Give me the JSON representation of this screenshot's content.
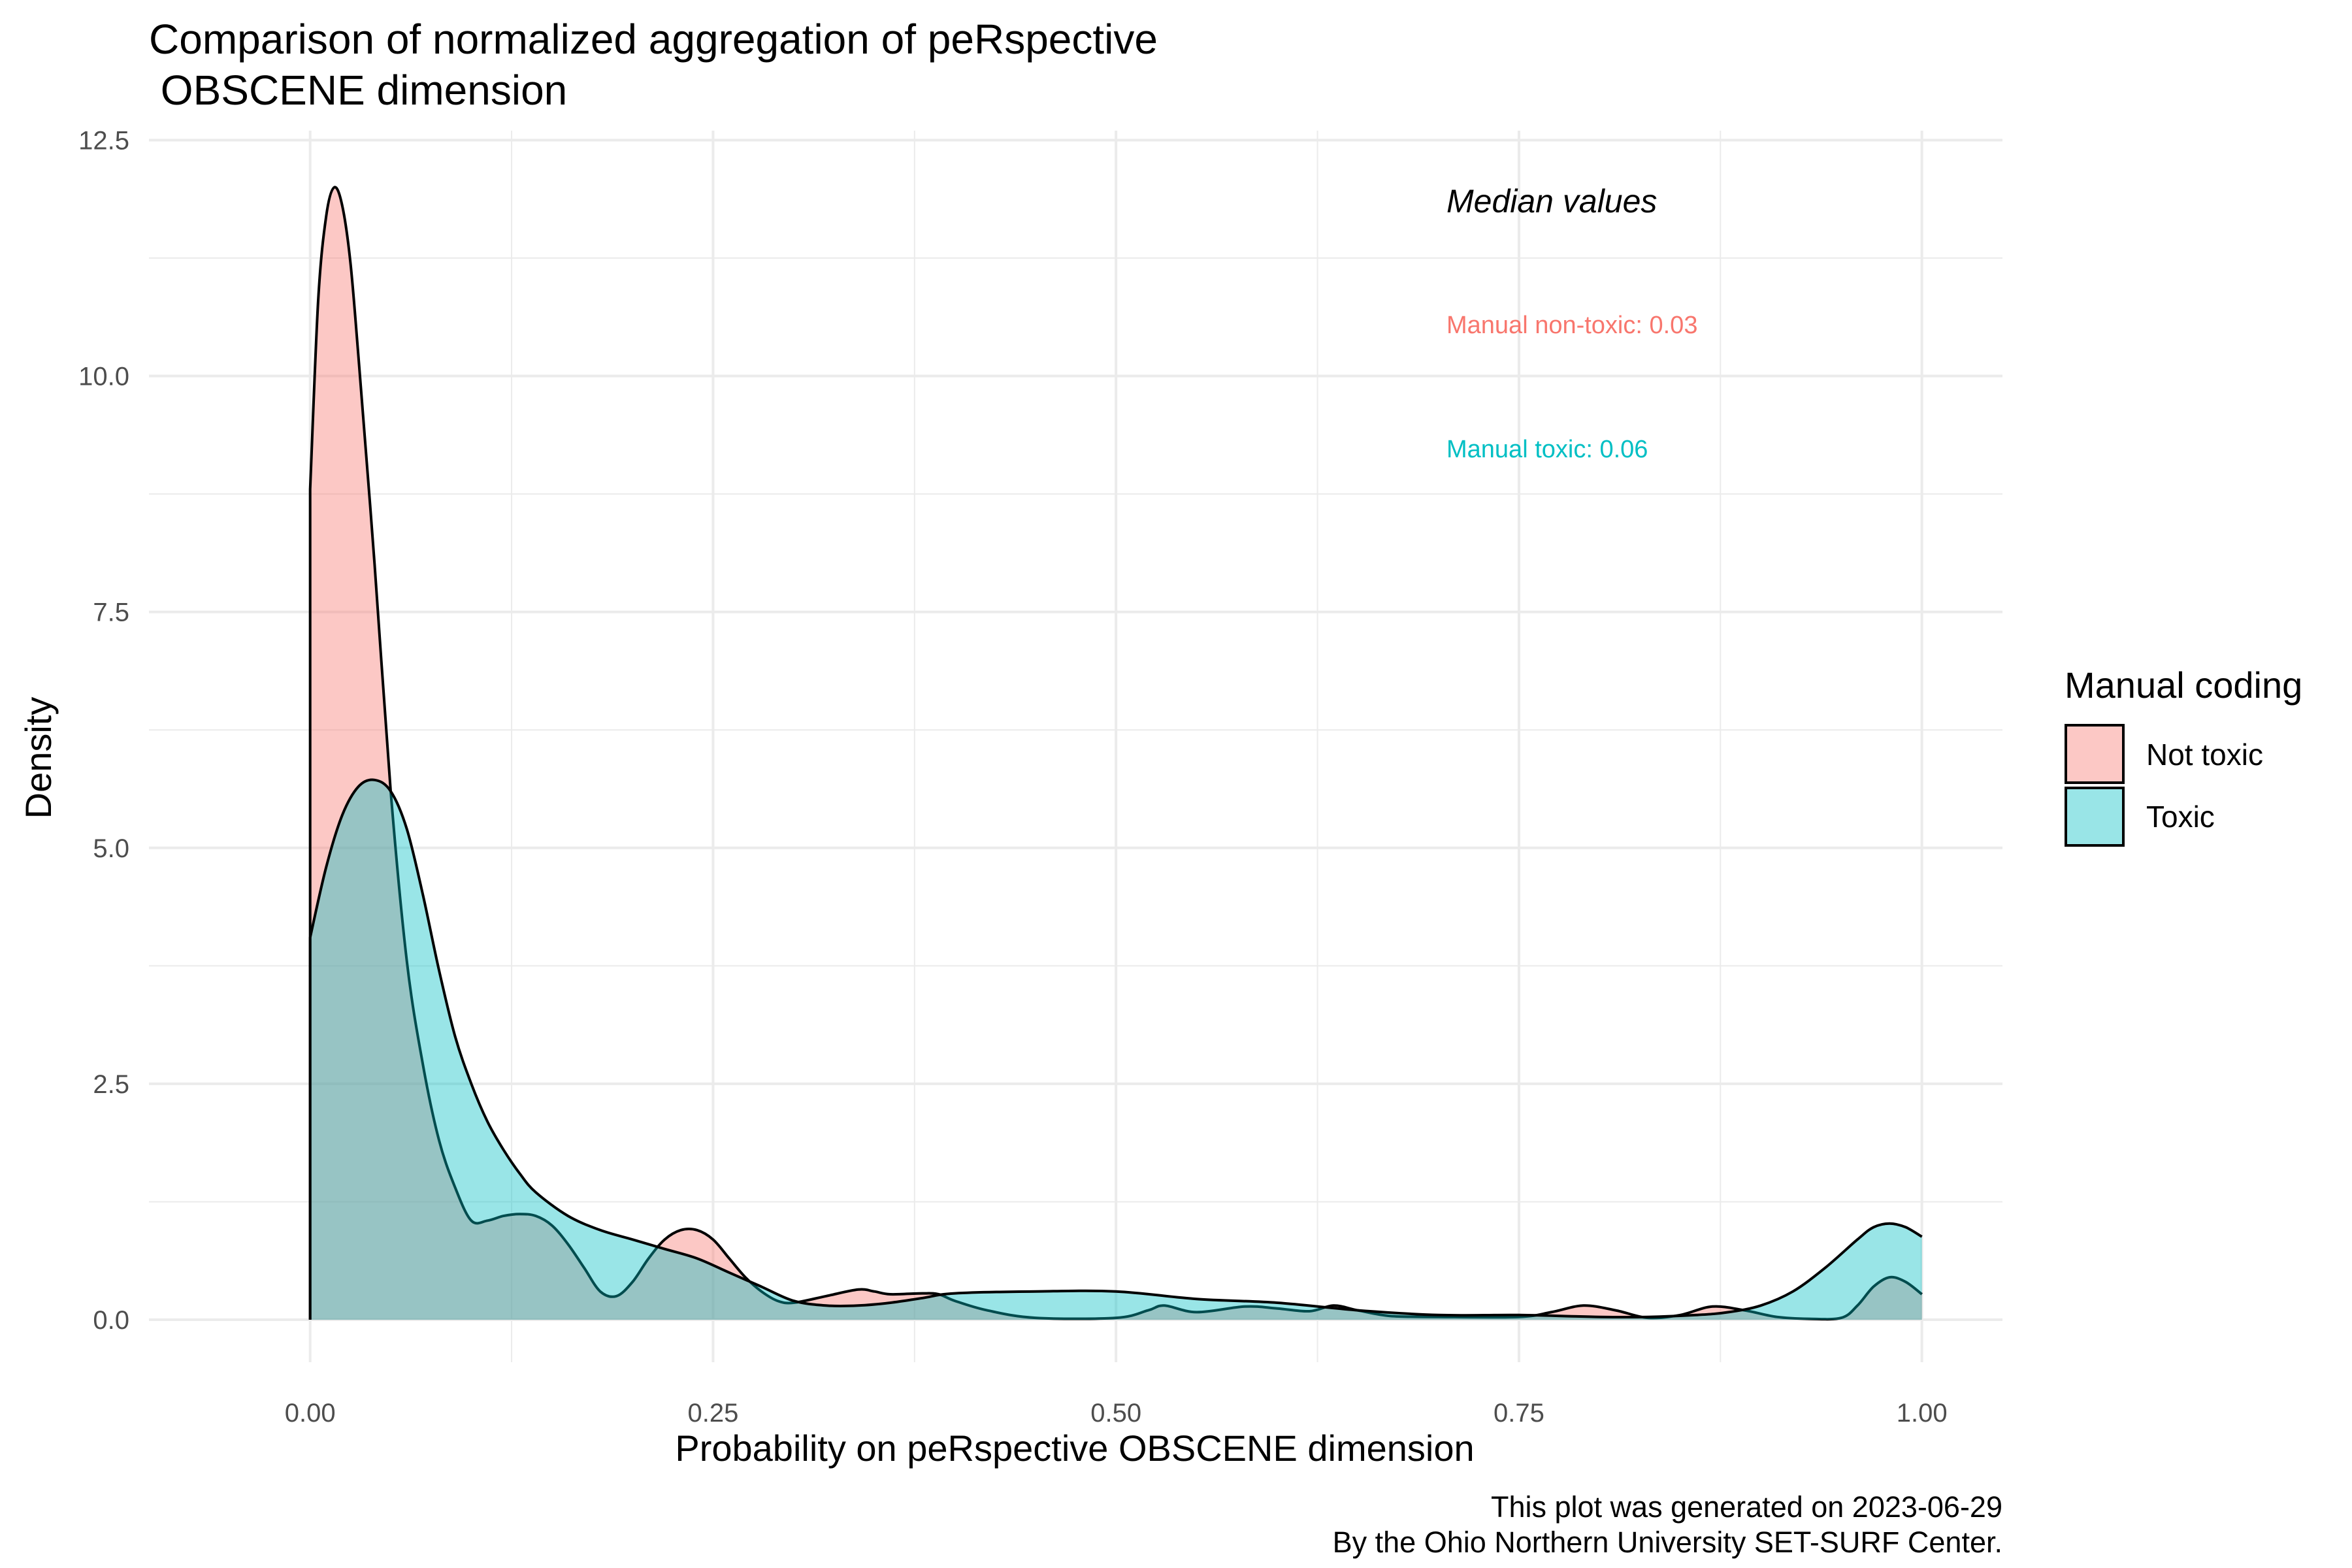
{
  "chart_data": {
    "type": "area",
    "title_line1": "Comparison of normalized aggregation of peRspective",
    "title_line2": " OBSCENE dimension",
    "xlabel": "Probability on peRspective OBSCENE dimension",
    "ylabel": "Density",
    "xlim": [
      -0.1,
      1.05
    ],
    "ylim": [
      -0.45,
      12.6
    ],
    "x_ticks": [
      0,
      0.25,
      0.5,
      0.75,
      1.0
    ],
    "x_tick_labels": [
      "0.00",
      "0.25",
      "0.50",
      "0.75",
      "1.00"
    ],
    "y_ticks": [
      0,
      2.5,
      5,
      7.5,
      10,
      12.5
    ],
    "y_tick_labels": [
      "0.0",
      "2.5",
      "5.0",
      "7.5",
      "10.0",
      "12.5"
    ],
    "grid": true,
    "legend": {
      "title": "Manual coding",
      "position": "right",
      "items": [
        {
          "label": "Not toxic",
          "color": "#F8766D"
        },
        {
          "label": "Toxic",
          "color": "#00BFC4"
        }
      ]
    },
    "annotations": {
      "heading": "Median values",
      "line1": "Manual non-toxic: 0.03",
      "line2": "Manual toxic: 0.06",
      "line1_color": "#F8766D",
      "line2_color": "#00BFC4"
    },
    "caption_line1": "This plot was generated on 2023-06-29",
    "caption_line2": "By the Ohio Northern University SET-SURF Center.",
    "series": [
      {
        "name": "Not toxic",
        "color": "#F8766D",
        "x": [
          0,
          0.005,
          0.01,
          0.015,
          0.02,
          0.025,
          0.03,
          0.04,
          0.05,
          0.06,
          0.07,
          0.08,
          0.09,
          0.1,
          0.11,
          0.12,
          0.13,
          0.14,
          0.15,
          0.16,
          0.17,
          0.18,
          0.19,
          0.2,
          0.21,
          0.22,
          0.23,
          0.24,
          0.25,
          0.26,
          0.27,
          0.28,
          0.29,
          0.3,
          0.32,
          0.34,
          0.35,
          0.36,
          0.38,
          0.39,
          0.4,
          0.42,
          0.45,
          0.5,
          0.52,
          0.53,
          0.55,
          0.58,
          0.6,
          0.62,
          0.635,
          0.65,
          0.67,
          0.7,
          0.75,
          0.77,
          0.79,
          0.81,
          0.83,
          0.85,
          0.87,
          0.89,
          0.91,
          0.93,
          0.95,
          0.96,
          0.97,
          0.98,
          0.99,
          1.0
        ],
        "y": [
          8.8,
          10.8,
          11.7,
          12.0,
          11.8,
          11.2,
          10.2,
          8.0,
          5.6,
          3.8,
          2.7,
          1.9,
          1.4,
          1.05,
          1.05,
          1.1,
          1.12,
          1.1,
          1.0,
          0.8,
          0.55,
          0.3,
          0.25,
          0.4,
          0.65,
          0.85,
          0.95,
          0.95,
          0.85,
          0.65,
          0.45,
          0.3,
          0.2,
          0.18,
          0.25,
          0.32,
          0.3,
          0.27,
          0.28,
          0.27,
          0.2,
          0.1,
          0.02,
          0.02,
          0.1,
          0.15,
          0.08,
          0.14,
          0.12,
          0.09,
          0.15,
          0.1,
          0.04,
          0.03,
          0.03,
          0.08,
          0.15,
          0.1,
          0.02,
          0.05,
          0.14,
          0.1,
          0.03,
          0.01,
          0.02,
          0.15,
          0.35,
          0.45,
          0.4,
          0.27
        ]
      },
      {
        "name": "Toxic",
        "color": "#00BFC4",
        "x": [
          0,
          0.01,
          0.02,
          0.03,
          0.04,
          0.05,
          0.06,
          0.07,
          0.08,
          0.09,
          0.1,
          0.11,
          0.12,
          0.13,
          0.14,
          0.16,
          0.18,
          0.2,
          0.22,
          0.24,
          0.26,
          0.28,
          0.3,
          0.32,
          0.34,
          0.36,
          0.38,
          0.4,
          0.45,
          0.5,
          0.55,
          0.6,
          0.65,
          0.7,
          0.75,
          0.8,
          0.83,
          0.86,
          0.88,
          0.9,
          0.92,
          0.94,
          0.96,
          0.97,
          0.98,
          0.99,
          1.0
        ],
        "y": [
          4.05,
          4.8,
          5.35,
          5.65,
          5.72,
          5.6,
          5.2,
          4.5,
          3.7,
          3.0,
          2.5,
          2.1,
          1.8,
          1.55,
          1.35,
          1.1,
          0.95,
          0.85,
          0.75,
          0.65,
          0.5,
          0.35,
          0.2,
          0.15,
          0.15,
          0.18,
          0.23,
          0.28,
          0.3,
          0.3,
          0.22,
          0.18,
          0.1,
          0.05,
          0.05,
          0.03,
          0.03,
          0.05,
          0.08,
          0.15,
          0.3,
          0.55,
          0.85,
          0.98,
          1.02,
          0.98,
          0.88
        ]
      }
    ]
  }
}
